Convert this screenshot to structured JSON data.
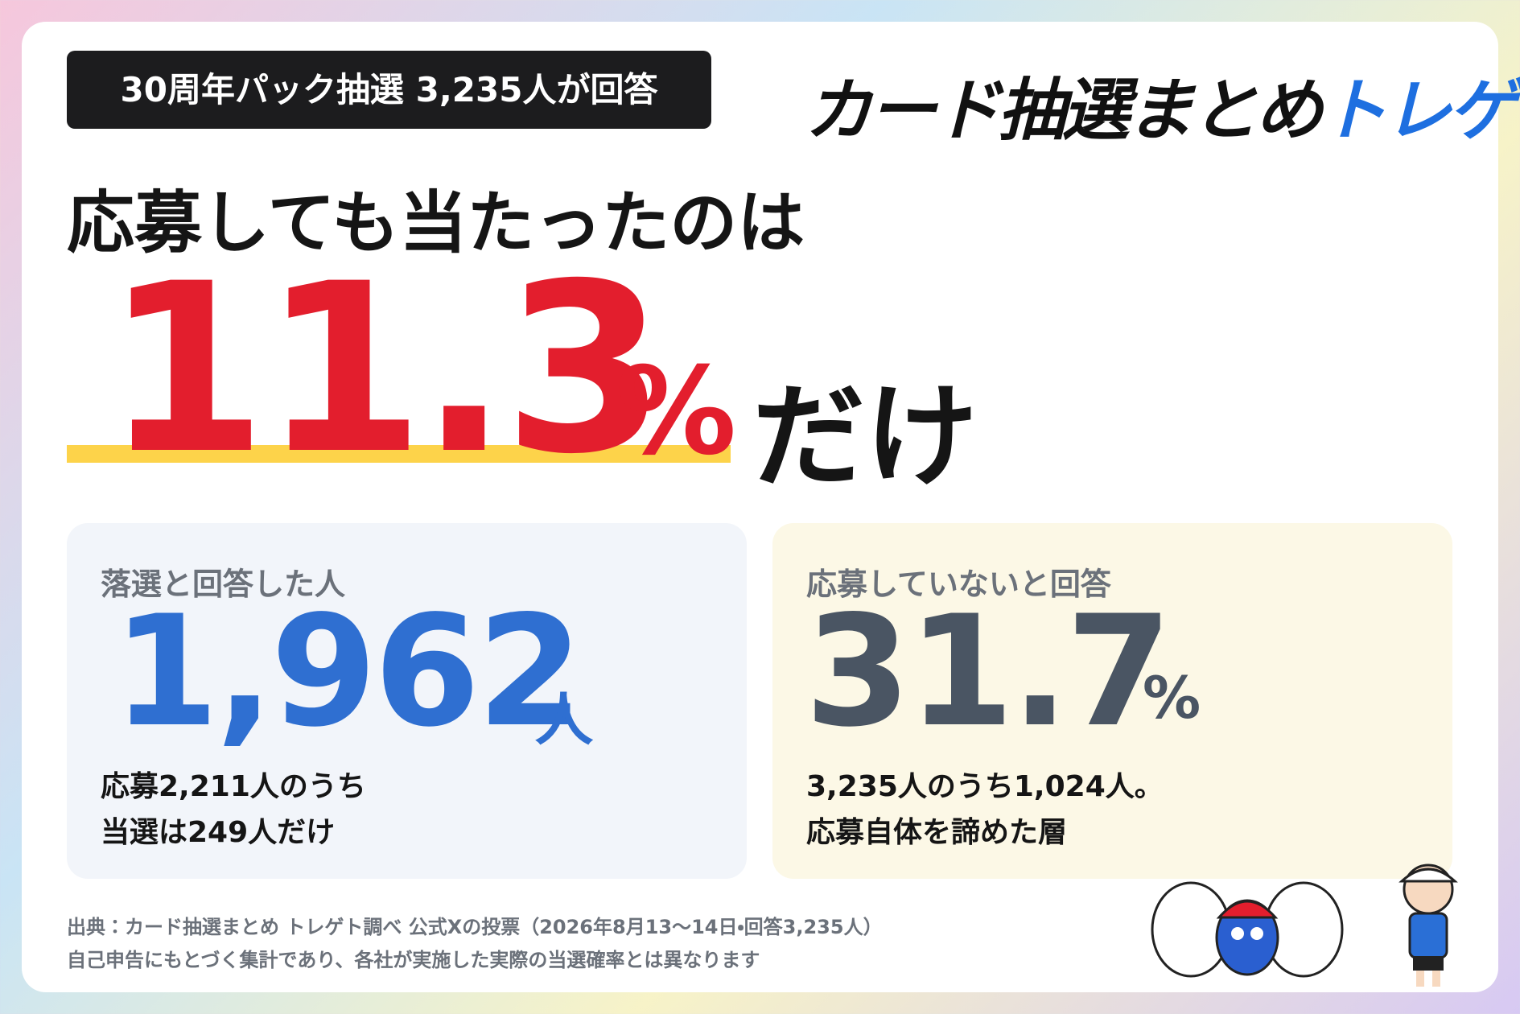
{
  "badge": "30周年パック抽選 3,235人が回答",
  "logo": {
    "main": "カード抽選まとめ",
    "brand": "トレゲト"
  },
  "headline": {
    "lead": "応募しても当たったのは",
    "number": "11.3",
    "unit": "%",
    "tail": "だけ"
  },
  "cards": [
    {
      "label": "落選と回答した人",
      "number": "1,962",
      "unit": "人",
      "notes": [
        "応募2,211人のうち",
        "当選は249人だけ"
      ]
    },
    {
      "label": "応募していないと回答",
      "number": "31.7",
      "unit": "%",
      "notes": [
        "3,235人のうち1,024人。",
        "応募自体を諦めた層"
      ]
    }
  ],
  "footer": [
    "出典：カード抽選まとめ トレゲト調べ 公式Xの投票（2026年8月13〜14日・回答3,235人）",
    "自己申告にもとづく集計であり、各社が実施した実際の当選確率とは異なります"
  ]
}
